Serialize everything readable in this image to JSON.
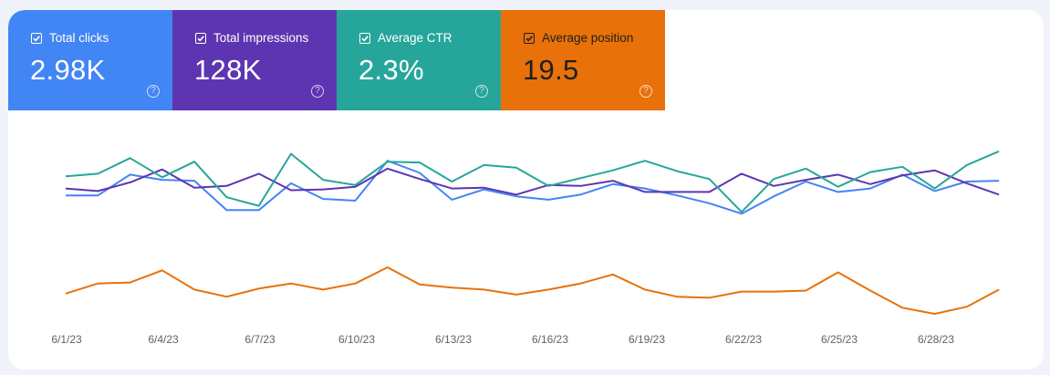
{
  "metrics": [
    {
      "label": "Total clicks",
      "value": "2.98K",
      "color": "#4285f4",
      "checked": true,
      "help_icon": "help-icon"
    },
    {
      "label": "Total impressions",
      "value": "128K",
      "color": "#5e35b1",
      "checked": true,
      "help_icon": "help-icon"
    },
    {
      "label": "Average CTR",
      "value": "2.3%",
      "color": "#26a69a",
      "checked": true,
      "help_icon": "help-icon"
    },
    {
      "label": "Average position",
      "value": "19.5",
      "color": "#e8710a",
      "checked": true,
      "help_icon": "help-icon"
    }
  ],
  "chart_data": {
    "type": "line",
    "x_ticks": [
      "6/1/23",
      "6/4/23",
      "6/7/23",
      "6/10/23",
      "6/13/23",
      "6/16/23",
      "6/19/23",
      "6/22/23",
      "6/25/23",
      "6/28/23"
    ],
    "grid": false,
    "series": [
      {
        "name": "Total clicks",
        "color": "#4285f4",
        "values": [
          0.44,
          0.44,
          0.68,
          0.62,
          0.61,
          0.27,
          0.27,
          0.58,
          0.4,
          0.38,
          0.84,
          0.7,
          0.39,
          0.51,
          0.43,
          0.39,
          0.45,
          0.57,
          0.52,
          0.44,
          0.35,
          0.23,
          0.43,
          0.6,
          0.48,
          0.52,
          0.68,
          0.49,
          0.6,
          0.61
        ]
      },
      {
        "name": "Total impressions",
        "color": "#5e35b1",
        "values": [
          0.52,
          0.49,
          0.59,
          0.74,
          0.53,
          0.55,
          0.69,
          0.5,
          0.51,
          0.54,
          0.75,
          0.63,
          0.52,
          0.53,
          0.45,
          0.56,
          0.55,
          0.61,
          0.48,
          0.48,
          0.48,
          0.69,
          0.55,
          0.62,
          0.68,
          0.57,
          0.67,
          0.73,
          0.58,
          0.45
        ]
      },
      {
        "name": "Average CTR",
        "color": "#26a69a",
        "values": [
          0.66,
          0.69,
          0.87,
          0.65,
          0.83,
          0.42,
          0.32,
          0.92,
          0.62,
          0.56,
          0.83,
          0.82,
          0.6,
          0.79,
          0.76,
          0.55,
          0.64,
          0.73,
          0.84,
          0.72,
          0.63,
          0.25,
          0.63,
          0.75,
          0.54,
          0.71,
          0.77,
          0.52,
          0.79,
          0.95
        ]
      },
      {
        "name": "Average position",
        "color": "#e8710a",
        "values": [
          19.3,
          18.3,
          18.2,
          17.0,
          18.9,
          19.6,
          18.8,
          18.3,
          18.9,
          18.3,
          16.7,
          18.4,
          18.7,
          18.9,
          19.4,
          18.9,
          18.3,
          17.4,
          18.9,
          19.6,
          19.7,
          19.1,
          19.1,
          19.0,
          17.2,
          19.0,
          20.7,
          21.3,
          20.6,
          18.9
        ]
      }
    ]
  }
}
